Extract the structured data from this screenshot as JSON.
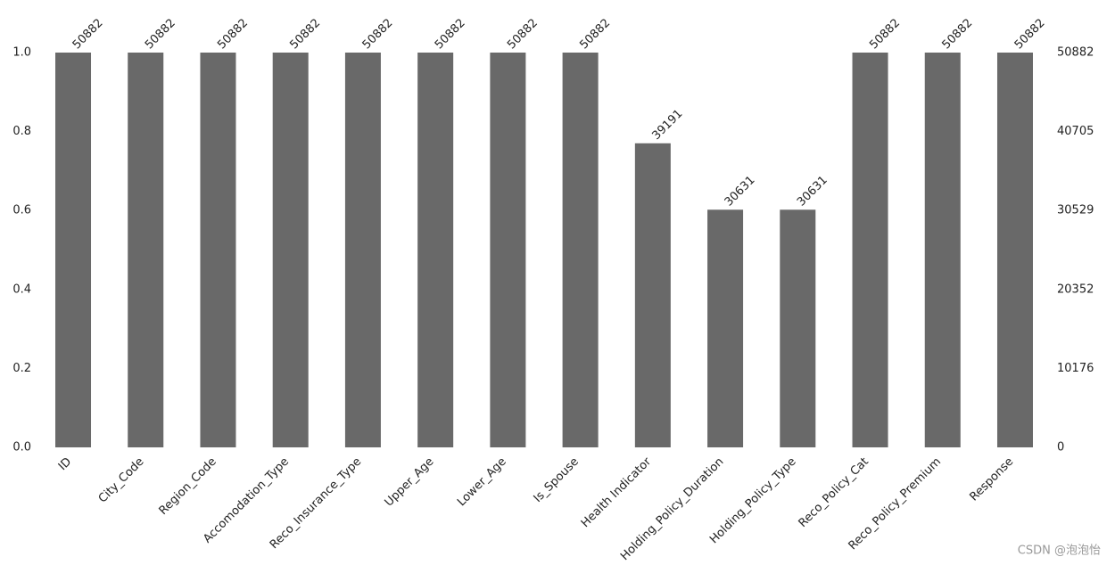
{
  "chart_data": {
    "type": "bar",
    "categories": [
      "ID",
      "City_Code",
      "Region_Code",
      "Accomodation_Type",
      "Reco_Insurance_Type",
      "Upper_Age",
      "Lower_Age",
      "Is_Spouse",
      "Health Indicator",
      "Holding_Policy_Duration",
      "Holding_Policy_Type",
      "Reco_Policy_Cat",
      "Reco_Policy_Premium",
      "Response"
    ],
    "series": [
      {
        "color": "#696969",
        "axis": "y2",
        "values": [
          50882,
          50882,
          50882,
          50882,
          50882,
          50882,
          50882,
          50882,
          39191,
          30631,
          30631,
          50882,
          50882,
          50882
        ]
      }
    ],
    "ylim": [
      0,
      1
    ],
    "yticks": [
      {
        "value": 0,
        "label": "0.0"
      },
      0.2,
      0.4,
      0.6,
      0.8,
      {
        "value": 1,
        "label": "1.0"
      }
    ],
    "y2lim": [
      0,
      50882
    ],
    "y2ticks": [
      0,
      10176,
      20352,
      30529,
      40705,
      50882
    ],
    "watermark": "CSDN @泡泡怡"
  }
}
